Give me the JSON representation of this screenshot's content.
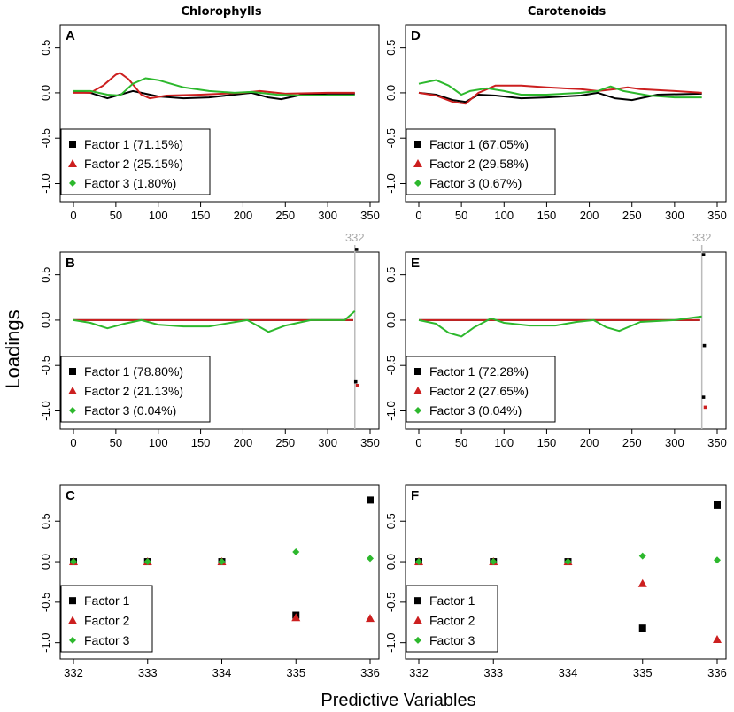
{
  "figure": {
    "column_titles": [
      "Chlorophylls",
      "Carotenoids"
    ],
    "ylabel": "Loadings",
    "xlabel": "Predictive Variables"
  },
  "colors": {
    "factor1": "#000000",
    "factor2": "#cc1f1f",
    "factor3": "#2db82d",
    "reference_line": "#bbbbbb"
  },
  "chart_data": [
    {
      "panel": "A",
      "column": "Chlorophylls",
      "type": "line",
      "xlim": [
        0,
        350
      ],
      "ylim": [
        -1.2,
        0.75
      ],
      "xticks": [
        0,
        50,
        100,
        150,
        200,
        250,
        300,
        350
      ],
      "xtick_labels": [
        "0",
        "50",
        "100",
        "150",
        "200",
        "250",
        "300",
        "350"
      ],
      "yticks": [
        -1.0,
        -0.5,
        0.0,
        0.5
      ],
      "ytick_labels": [
        "-1.0",
        "-0.5",
        "0.0",
        "0.5"
      ],
      "legend": [
        "Factor 1 (71.15%)",
        "Factor 2 (25.15%)",
        "Factor 3 (1.80%)"
      ],
      "series": [
        {
          "name": "Factor 1",
          "x": [
            0,
            20,
            40,
            55,
            70,
            80,
            100,
            130,
            160,
            190,
            210,
            230,
            245,
            270,
            300,
            332
          ],
          "y": [
            0.01,
            0.0,
            -0.06,
            -0.02,
            0.02,
            0.0,
            -0.04,
            -0.06,
            -0.05,
            -0.02,
            0.0,
            -0.05,
            -0.07,
            -0.02,
            -0.01,
            -0.01
          ]
        },
        {
          "name": "Factor 2",
          "x": [
            0,
            20,
            35,
            50,
            55,
            65,
            80,
            90,
            110,
            150,
            200,
            220,
            250,
            300,
            332
          ],
          "y": [
            0.0,
            0.0,
            0.08,
            0.2,
            0.22,
            0.15,
            -0.02,
            -0.06,
            -0.03,
            -0.02,
            0.0,
            0.02,
            -0.01,
            0.0,
            0.0
          ]
        },
        {
          "name": "Factor 3",
          "x": [
            0,
            20,
            40,
            55,
            70,
            85,
            100,
            130,
            160,
            190,
            210,
            240,
            270,
            300,
            332
          ],
          "y": [
            0.02,
            0.02,
            -0.02,
            -0.03,
            0.1,
            0.16,
            0.14,
            0.06,
            0.02,
            0.0,
            0.01,
            -0.02,
            -0.03,
            -0.03,
            -0.03
          ]
        }
      ]
    },
    {
      "panel": "D",
      "column": "Carotenoids",
      "type": "line",
      "xlim": [
        0,
        350
      ],
      "ylim": [
        -1.2,
        0.75
      ],
      "xticks": [
        0,
        50,
        100,
        150,
        200,
        250,
        300,
        350
      ],
      "xtick_labels": [
        "0",
        "50",
        "100",
        "150",
        "200",
        "250",
        "300",
        "350"
      ],
      "yticks": [
        -1.0,
        -0.5,
        0.0,
        0.5
      ],
      "ytick_labels": [
        "-1.0",
        "-0.5",
        "0.0",
        "0.5"
      ],
      "legend": [
        "Factor 1 (67.05%)",
        "Factor 2 (29.58%)",
        "Factor 3 (0.67%)"
      ],
      "series": [
        {
          "name": "Factor 1",
          "x": [
            0,
            20,
            40,
            55,
            70,
            90,
            120,
            150,
            190,
            210,
            230,
            250,
            280,
            332
          ],
          "y": [
            0.0,
            -0.02,
            -0.08,
            -0.1,
            -0.02,
            -0.03,
            -0.06,
            -0.05,
            -0.03,
            0.0,
            -0.06,
            -0.08,
            -0.02,
            -0.01
          ]
        },
        {
          "name": "Factor 2",
          "x": [
            0,
            20,
            40,
            55,
            70,
            90,
            120,
            150,
            190,
            210,
            230,
            245,
            260,
            300,
            332
          ],
          "y": [
            0.0,
            -0.03,
            -0.1,
            -0.12,
            0.0,
            0.08,
            0.08,
            0.06,
            0.04,
            0.02,
            0.04,
            0.06,
            0.04,
            0.02,
            0.0
          ]
        },
        {
          "name": "Factor 3",
          "x": [
            0,
            20,
            35,
            50,
            60,
            80,
            100,
            120,
            150,
            190,
            210,
            225,
            240,
            270,
            300,
            332
          ],
          "y": [
            0.1,
            0.14,
            0.08,
            -0.02,
            0.02,
            0.05,
            0.02,
            -0.02,
            -0.02,
            0.0,
            0.02,
            0.07,
            0.02,
            -0.03,
            -0.05,
            -0.05
          ]
        }
      ]
    },
    {
      "panel": "B",
      "column": "Chlorophylls",
      "type": "line",
      "xlim": [
        0,
        350
      ],
      "ylim": [
        -1.2,
        0.75
      ],
      "xticks": [
        0,
        50,
        100,
        150,
        200,
        250,
        300,
        350
      ],
      "xtick_labels": [
        "0",
        "50",
        "100",
        "150",
        "200",
        "250",
        "300",
        "350"
      ],
      "yticks": [
        -1.0,
        -0.5,
        0.0,
        0.5
      ],
      "ytick_labels": [
        "-1.0",
        "-0.5",
        "0.0",
        "0.5"
      ],
      "legend": [
        "Factor 1 (78.80%)",
        "Factor 2 (21.13%)",
        "Factor 3 (0.04%)"
      ],
      "reference_line": {
        "x": 332,
        "label": "332"
      },
      "series": [
        {
          "name": "Factor 1",
          "x": [
            0,
            50,
            100,
            150,
            200,
            250,
            300,
            330
          ],
          "y": [
            0.0,
            0.0,
            0.0,
            0.0,
            0.0,
            0.0,
            0.0,
            0.0
          ]
        },
        {
          "name": "Factor 2",
          "x": [
            0,
            50,
            100,
            150,
            200,
            250,
            300,
            330
          ],
          "y": [
            0.0,
            0.0,
            0.0,
            0.0,
            0.0,
            0.0,
            0.0,
            0.0
          ]
        },
        {
          "name": "Factor 3",
          "x": [
            0,
            20,
            40,
            60,
            80,
            100,
            130,
            160,
            185,
            205,
            215,
            230,
            250,
            280,
            320,
            332
          ],
          "y": [
            0.0,
            -0.03,
            -0.09,
            -0.04,
            0.0,
            -0.05,
            -0.07,
            -0.07,
            -0.03,
            0.0,
            -0.05,
            -0.13,
            -0.06,
            0.0,
            0.0,
            0.1
          ]
        }
      ],
      "points": [
        {
          "series": "Factor 1",
          "x": 334,
          "y": 0.78
        },
        {
          "series": "Factor 1",
          "x": 333,
          "y": -0.68
        },
        {
          "series": "Factor 2",
          "x": 335,
          "y": -0.72
        }
      ]
    },
    {
      "panel": "E",
      "column": "Carotenoids",
      "type": "line",
      "xlim": [
        0,
        350
      ],
      "ylim": [
        -1.2,
        0.75
      ],
      "xticks": [
        0,
        50,
        100,
        150,
        200,
        250,
        300,
        350
      ],
      "xtick_labels": [
        "0",
        "50",
        "100",
        "150",
        "200",
        "250",
        "300",
        "350"
      ],
      "yticks": [
        -1.0,
        -0.5,
        0.0,
        0.5
      ],
      "ytick_labels": [
        "-1.0",
        "-0.5",
        "0.0",
        "0.5"
      ],
      "legend": [
        "Factor 1 (72.28%)",
        "Factor 2 (27.65%)",
        "Factor 3 (0.04%)"
      ],
      "reference_line": {
        "x": 332,
        "label": "332"
      },
      "series": [
        {
          "name": "Factor 1",
          "x": [
            0,
            50,
            100,
            150,
            200,
            250,
            300,
            330
          ],
          "y": [
            0.0,
            0.0,
            0.0,
            0.0,
            0.0,
            0.0,
            0.0,
            0.0
          ]
        },
        {
          "name": "Factor 2",
          "x": [
            0,
            50,
            100,
            150,
            200,
            250,
            300,
            330
          ],
          "y": [
            0.0,
            0.0,
            0.0,
            0.0,
            0.0,
            0.0,
            0.0,
            0.0
          ]
        },
        {
          "name": "Factor 3",
          "x": [
            0,
            20,
            35,
            50,
            65,
            85,
            100,
            130,
            160,
            185,
            205,
            220,
            235,
            260,
            300,
            332
          ],
          "y": [
            0.0,
            -0.04,
            -0.14,
            -0.18,
            -0.08,
            0.02,
            -0.03,
            -0.06,
            -0.06,
            -0.02,
            0.0,
            -0.08,
            -0.12,
            -0.02,
            0.0,
            0.04
          ]
        }
      ],
      "points": [
        {
          "series": "Factor 1",
          "x": 334,
          "y": 0.72
        },
        {
          "series": "Factor 1",
          "x": 335,
          "y": -0.28
        },
        {
          "series": "Factor 1",
          "x": 334,
          "y": -0.85
        },
        {
          "series": "Factor 2",
          "x": 336,
          "y": -0.96
        }
      ]
    },
    {
      "panel": "C",
      "column": "Chlorophylls",
      "type": "scatter",
      "xlim": [
        332,
        336
      ],
      "ylim": [
        -1.2,
        0.95
      ],
      "xticks": [
        332,
        333,
        334,
        335,
        336
      ],
      "xtick_labels": [
        "332",
        "333",
        "334",
        "335",
        "336"
      ],
      "yticks": [
        -1.0,
        -0.5,
        0.0,
        0.5
      ],
      "ytick_labels": [
        "-1.0",
        "-0.5",
        "0.0",
        "0.5"
      ],
      "legend": [
        "Factor 1",
        "Factor 2",
        "Factor 3"
      ],
      "series": [
        {
          "name": "Factor 1",
          "x": [
            332,
            333,
            334,
            335,
            336
          ],
          "y": [
            0.0,
            0.0,
            0.0,
            -0.66,
            0.76
          ]
        },
        {
          "name": "Factor 2",
          "x": [
            332,
            333,
            334,
            335,
            336
          ],
          "y": [
            0.0,
            0.0,
            0.0,
            -0.69,
            -0.7
          ]
        },
        {
          "name": "Factor 3",
          "x": [
            332,
            333,
            334,
            335,
            336
          ],
          "y": [
            0.0,
            0.0,
            0.0,
            0.12,
            0.04
          ]
        }
      ]
    },
    {
      "panel": "F",
      "column": "Carotenoids",
      "type": "scatter",
      "xlim": [
        332,
        336
      ],
      "ylim": [
        -1.2,
        0.95
      ],
      "xticks": [
        332,
        333,
        334,
        335,
        336
      ],
      "xtick_labels": [
        "332",
        "333",
        "334",
        "335",
        "336"
      ],
      "yticks": [
        -1.0,
        -0.5,
        0.0,
        0.5
      ],
      "ytick_labels": [
        "-1.0",
        "-0.5",
        "0.0",
        "0.5"
      ],
      "legend": [
        "Factor 1",
        "Factor 2",
        "Factor 3"
      ],
      "series": [
        {
          "name": "Factor 1",
          "x": [
            332,
            333,
            334,
            335,
            336
          ],
          "y": [
            0.0,
            0.0,
            0.0,
            -0.82,
            0.7
          ]
        },
        {
          "name": "Factor 2",
          "x": [
            332,
            333,
            334,
            335,
            336
          ],
          "y": [
            0.0,
            0.0,
            0.0,
            -0.27,
            -0.96
          ]
        },
        {
          "name": "Factor 3",
          "x": [
            332,
            333,
            334,
            335,
            336
          ],
          "y": [
            0.0,
            0.0,
            0.0,
            0.07,
            0.02
          ]
        }
      ]
    }
  ]
}
